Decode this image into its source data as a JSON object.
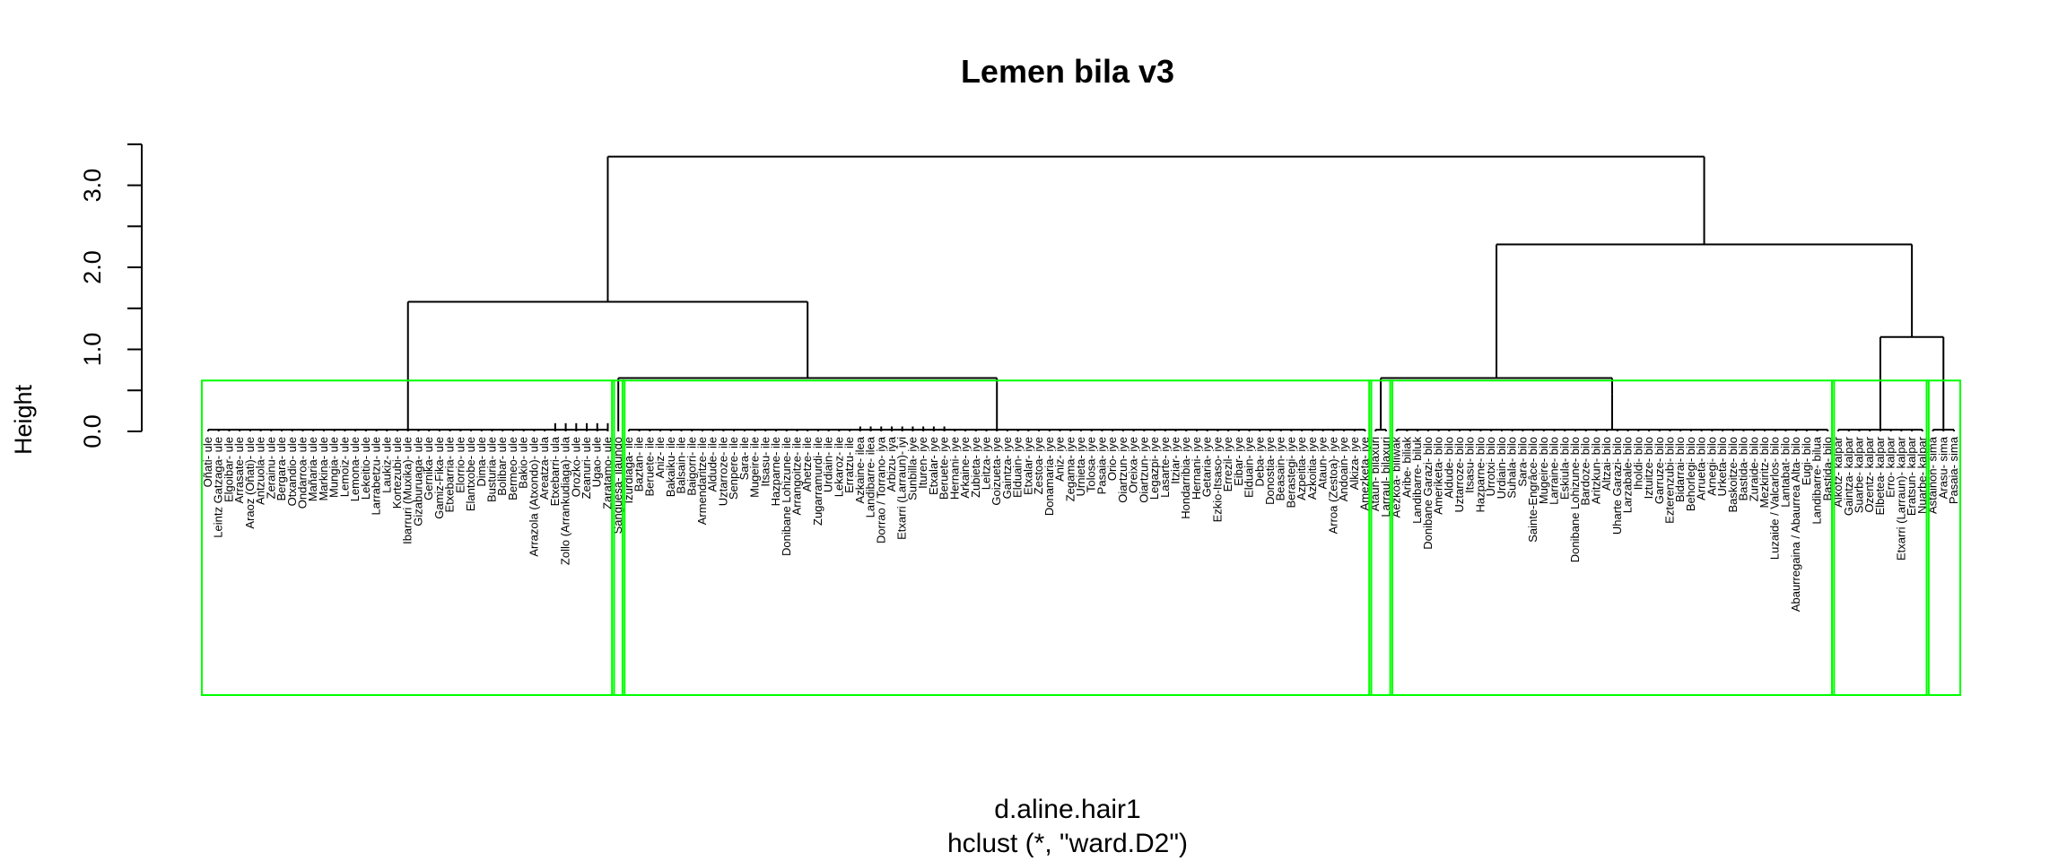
{
  "chart_data": {
    "type": "dendrogram",
    "title": "Lemen bila v3",
    "xlabel": "d.aline.hair1",
    "sublabel": "hclust (*, \"ward.D2\")",
    "ylabel": "Height",
    "yticks": [
      "0.0",
      "1.0",
      "2.0",
      "3.0"
    ],
    "ylim": [
      0,
      3.4
    ],
    "highlight_color": "#00ff00",
    "merges": [
      {
        "pair": "A + B",
        "height": 3.35
      },
      {
        "pair": "C + D",
        "height": 2.28
      },
      {
        "pair": "E + F",
        "height": 1.58
      },
      {
        "pair": "D",
        "height": 1.15
      },
      {
        "pair": "B",
        "height": 0.65
      },
      {
        "pair": "A",
        "height": 0.38
      }
    ],
    "clusters": [
      {
        "name": "ule",
        "leaves": [
          "Oñati- ule",
          "Leintz Gatzaga- ule",
          "Elgoibar- ule",
          "Arrasate- ule",
          "Araoz (Oñati)- ule",
          "Antzuola- ule",
          "Zerainu- ule",
          "Bergara- ule",
          "Otxandio- ule",
          "Ondarroa- ule",
          "Mañaria- ule",
          "Markina- ule",
          "Mungia- ule",
          "Lemoiz- ule",
          "Lemona- ule",
          "Lekeitio- ule",
          "Larrabetzu- ule",
          "Laukiz- ule",
          "Kortezubi- ule",
          "Ibarruri (Muxika)- ule",
          "Gizaburuaga- ule",
          "Gernika- ule",
          "Gamiz-Fika- ule",
          "Etxebarria- ule",
          "Elorrio- ule",
          "Elantxobe- ule",
          "Dima- ule",
          "Busturia- ule",
          "Bolibar- ule",
          "Bermeo- ule",
          "Bakio- ule",
          "Arrazola (Atxondo)- ule",
          "Areatza- ula",
          "Etxebarri- ula",
          "Zollo (Arrankudiaga)- ula",
          "Orozko- ule",
          "Zeanuri- ule",
          "Ugao- ule",
          "Zaratamo- ule"
        ]
      },
      {
        "name": "ilaundo",
        "leaves": [
          "Sangüesa- ilaundo"
        ]
      },
      {
        "name": "ile",
        "leaves": [
          "Izurdiaga- ile",
          "Baztan- ile",
          "Beruete- ile",
          "Aniz- ile",
          "Bakaiku- ile",
          "Balsain- ile",
          "Baigorri- ile",
          "Armendaritze- ile",
          "Aldude- ile",
          "Uztarroze- ile",
          "Senpere- ile",
          "Sara- ile",
          "Mugeire- ile",
          "Itsasu- ile",
          "Hazparne- ile",
          "Donibane Lohizune- ile",
          "Arrangoitze- ile",
          "Ahetze- ile",
          "Zugarramurdi- ile",
          "Urdiain- ile",
          "Lekaroz- ile",
          "Erratzu- ile",
          "Azkaine- ilea",
          "Landibarre- ilea",
          "Dorrao / Torrano- iya",
          "Arbizu- iya",
          "Etxarri (Larraun)- iyi",
          "Sunbilla- iye",
          "Ituren- iye",
          "Etxalar- iye",
          "Beruete- iye",
          "Hernani- iye",
          "Arkaine- iye",
          "Zubieta- iye",
          "Leitza- iye",
          "Goizueta- iye",
          "Gaintza- iye",
          "Elduain- iye",
          "Etxalar- iye",
          "Zestoa- iye",
          "Donamaria- iye",
          "Aniz- iye",
          "Zegama- iye",
          "Urnieta- iye",
          "Tolosa- iye",
          "Pasaia- iye",
          "Orio- iye",
          "Oiartzun- iye",
          "Oreixa- iye",
          "Oiartzun- iye",
          "Legazpi- iye",
          "Lasarte- iye",
          "Itziar- iye",
          "Hondarribia- iye",
          "Hernani- iye",
          "Getaria- iye",
          "Ezkio-Itsaso- iye",
          "Errezil- iye",
          "Eibar- iye",
          "Elduain- iye",
          "Deba- iye",
          "Donostia- iye",
          "Beasain- iye",
          "Berastegi- iye",
          "Azpeitia- iye",
          "Azkoitia- iye",
          "Ataun- iye",
          "Arroa (Zestoa)- iye",
          "Andoain- iye",
          "Alkiza- iye",
          "Amezketa- iye"
        ]
      },
      {
        "name": "bilaxuri",
        "leaves": [
          "Ataun- bilaxuri",
          "Larraul- bilaxuri"
        ]
      },
      {
        "name": "bilo",
        "leaves": [
          "Aezkoa- biliwak",
          "Aribe- biliak",
          "Landibarre- biluk",
          "Donibane Garazi- bilo",
          "Ameriketa- bilo",
          "Aldude- bilo",
          "Uztarroze- bilo",
          "Itsasu- bilo",
          "Hazparne- bilo",
          "Urrotxi- bilo",
          "Urdiain- bilo",
          "Suhala- bilo",
          "Sara- bilo",
          "Sainte-Engrâce- bilo",
          "Mugeire- bilo",
          "Larraine- bilo",
          "Eskiula- bilo",
          "Donibane Lohizune- bilo",
          "Bardoze- bilo",
          "Aritzkun- bilo",
          "Altzai- bilo",
          "Uharte Garazi- bilo",
          "Larzabale- bilo",
          "Iholdi- bilo",
          "Iztuitze- bilo",
          "Garruze- bilo",
          "Ezterenzubi- bilo",
          "Bidarrai- bilo",
          "Behorlegi- bilo",
          "Arrueta- bilo",
          "Arnegi- bilo",
          "Urketa- bilo",
          "Baskoitze- bilo",
          "Bastida- bilo",
          "Zuraide- bilo",
          "Mezkiritz- bilo",
          "Luzaide / Valcarlos- bilo",
          "Lantabat- bilo",
          "Abaurregaina / Abaurrea Alta- bilo",
          "Eugi- bilo",
          "Landibarre- bilua",
          "Bastida- bilo"
        ]
      },
      {
        "name": "kalpar",
        "leaves": [
          "Alkotz- kalpar",
          "Gaintza- kalpar",
          "Suarbe- kalpar",
          "Ozentz- kalpar",
          "Elbetea- kalpar",
          "Erro- kalpar",
          "Etxarri (Larraun)- kalpar",
          "Eratsun- kalpar",
          "Nuarbe- kalpar"
        ]
      },
      {
        "name": "sima",
        "leaves": [
          "Astaiñon- sima",
          "Arasu- sima",
          "Pasaia- sima"
        ]
      }
    ]
  }
}
